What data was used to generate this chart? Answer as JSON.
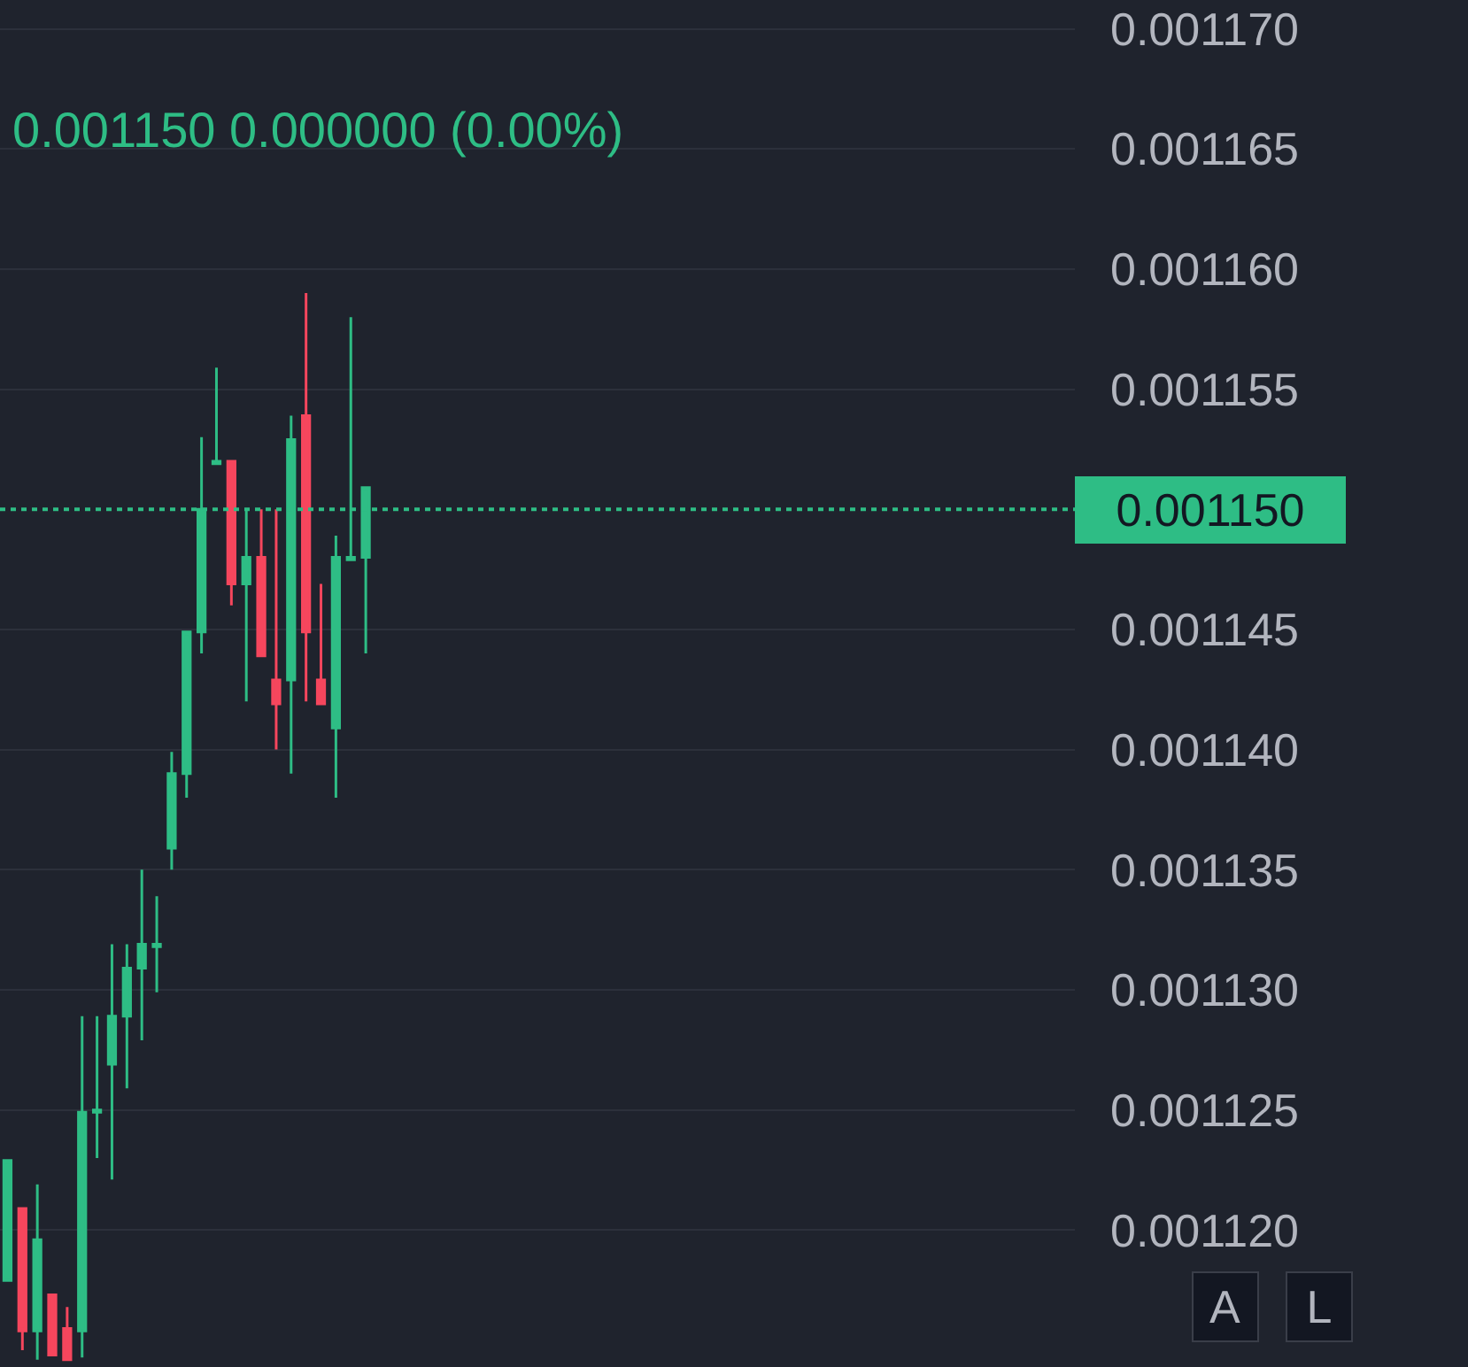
{
  "chart_data": {
    "type": "candlestick",
    "subtitle": "0.001150 0.000000 (0.00%)",
    "categories": [
      null,
      null,
      null,
      null,
      null,
      null,
      null,
      null,
      null,
      null,
      null,
      null,
      null,
      null,
      null,
      null,
      null,
      null,
      null,
      null,
      null,
      null,
      null,
      null,
      null,
      null,
      null,
      null,
      null,
      null,
      null,
      null,
      null,
      null,
      null,
      null,
      null,
      null,
      null,
      null,
      null,
      null,
      null,
      null,
      null,
      null,
      null,
      null,
      null,
      null,
      null,
      null,
      null,
      null,
      null,
      null,
      null,
      null,
      null,
      null,
      null,
      null,
      null,
      null,
      null,
      null,
      null,
      null,
      null,
      null,
      null,
      null
    ],
    "ohlc": [
      [
        0.0011179,
        0.0011229,
        0.0011179,
        0.0011229
      ],
      [
        0.0011209,
        0.0011209,
        0.001115,
        0.0011158
      ],
      [
        0.0011158,
        0.0011219,
        0.0011146,
        0.0011196
      ],
      [
        0.0011173,
        0.0011173,
        0.0011148,
        0.0011148
      ],
      [
        0.0011159,
        0.0011168,
        0.0011146,
        0.0011146
      ],
      [
        0.0011158,
        0.0011289,
        0.0011147,
        0.0011249
      ],
      [
        0.0011249,
        0.0011289,
        0.001123,
        0.001125
      ],
      [
        0.0011269,
        0.0011319,
        0.0011221,
        0.0011289
      ],
      [
        0.0011289,
        0.0011319,
        0.0011259,
        0.0011309
      ],
      [
        0.0011309,
        0.001135,
        0.0011279,
        0.0011319
      ],
      [
        0.0011318,
        0.0011339,
        0.0011299,
        0.0011319
      ],
      [
        0.0011359,
        0.0011399,
        0.001135,
        0.001139
      ],
      [
        0.001139,
        0.0011449,
        0.001138,
        0.0011449
      ],
      [
        0.0011449,
        0.001153,
        0.001144,
        0.00115
      ],
      [
        0.0011519,
        0.0011559,
        0.0011519,
        0.001152
      ],
      [
        0.001152,
        0.001152,
        0.001146,
        0.0011469
      ],
      [
        0.0011469,
        0.00115,
        0.001142,
        0.001148
      ],
      [
        0.001148,
        0.00115,
        0.0011439,
        0.0011439
      ],
      [
        0.0011429,
        0.00115,
        0.00114,
        0.0011419
      ],
      [
        0.0011429,
        0.0011539,
        0.001139,
        0.0011529
      ],
      [
        0.0011539,
        0.001159,
        0.001142,
        0.0011449
      ],
      [
        0.0011429,
        0.0011469,
        0.0011419,
        0.0011419
      ],
      [
        0.0011409,
        0.0011489,
        0.001138,
        0.001148
      ],
      [
        0.0011479,
        0.001158,
        0.0011479,
        0.001148
      ],
      [
        0.001148,
        0.0011509,
        0.001144,
        0.0011509
      ],
      null,
      null,
      null,
      null,
      null,
      null,
      null,
      null,
      null,
      null,
      null,
      null,
      null,
      null,
      null,
      null,
      null,
      null,
      null,
      null,
      null,
      null,
      null,
      null,
      null,
      null,
      null,
      null,
      null,
      null,
      null,
      null,
      null,
      null,
      null,
      null,
      null,
      null,
      null,
      null,
      null,
      null,
      null,
      null,
      null,
      null,
      null
    ],
    "colors": [
      "#2ebd85",
      "#f6465d",
      "#2ebd85",
      "#f6465d",
      "#f6465d",
      "#2ebd85",
      "#2ebd85",
      "#2ebd85",
      "#2ebd85",
      "#2ebd85",
      "#2ebd85",
      "#2ebd85",
      "#2ebd85",
      "#2ebd85",
      "#2ebd85",
      "#f6465d",
      "#2ebd85",
      "#f6465d",
      "#f6465d",
      "#2ebd85",
      "#f6465d",
      "#f6465d",
      "#2ebd85",
      "#2ebd85",
      "#2ebd85",
      null,
      null,
      null,
      null,
      null,
      null,
      null,
      null,
      null,
      null,
      null,
      null,
      null,
      null,
      null,
      null,
      null,
      null,
      null,
      null,
      null,
      null,
      null,
      null,
      null,
      null,
      null,
      null,
      null,
      null,
      null,
      null,
      null,
      null,
      null,
      null,
      null,
      null,
      null,
      null,
      null,
      null,
      null,
      null,
      null,
      null,
      null
    ],
    "ylim": [
      0.0011143,
      0.0011712
    ],
    "yticks": [
      {
        "value": 0.00112,
        "label": "0.001120"
      },
      {
        "value": 0.001125,
        "label": "0.001125"
      },
      {
        "value": 0.00113,
        "label": "0.001130"
      },
      {
        "value": 0.001135,
        "label": "0.001135"
      },
      {
        "value": 0.00114,
        "label": "0.001140"
      },
      {
        "value": 0.001145,
        "label": "0.001145"
      },
      {
        "value": 0.001155,
        "label": "0.001155"
      },
      {
        "value": 0.00116,
        "label": "0.001160"
      },
      {
        "value": 0.001165,
        "label": "0.001165"
      },
      {
        "value": 0.00117,
        "label": "0.001170"
      }
    ],
    "ref_lines": [
      {
        "axis": "y",
        "value": 0.00115,
        "label": "0.001150",
        "color": "#2ebd85",
        "line_style": "dotted"
      }
    ],
    "annotations": [
      "A",
      "L"
    ],
    "grid": "y",
    "tick_labels": "y"
  }
}
